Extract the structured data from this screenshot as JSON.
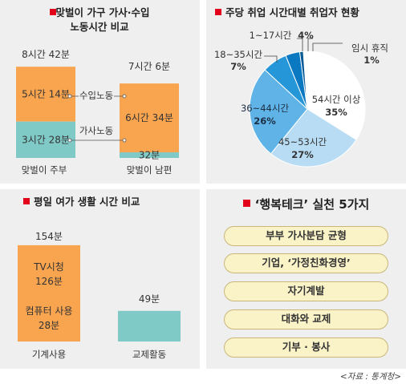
{
  "chart_data": [
    {
      "type": "bar",
      "title_line1": "맞벌이 가구 가사·수입",
      "title_line2": "노동시간 비교",
      "categories": [
        "맞벌이 주부",
        "맞벌이 남편"
      ],
      "series": [
        {
          "name": "수입노동",
          "values": [
            314,
            394
          ],
          "labels": [
            "5시간 14분",
            "6시간 34분"
          ]
        },
        {
          "name": "가사노동",
          "values": [
            208,
            32
          ],
          "labels": [
            "3시간 28분",
            "32분"
          ]
        }
      ],
      "totals": [
        "8시간 42분",
        "7시간 6분"
      ],
      "colors": {
        "income": "#f9a550",
        "housework": "#7fcac7"
      }
    },
    {
      "type": "pie",
      "title": "주당 취업 시간대별 취업자 현황",
      "slices": [
        {
          "label": "54시간 이상",
          "value": 35,
          "display": "35%",
          "color": "#ffffff"
        },
        {
          "label": "45~53시간",
          "value": 27,
          "display": "27%",
          "color": "#b8dcf3"
        },
        {
          "label": "36~44시간",
          "value": 26,
          "display": "26%",
          "color": "#5fb3e6"
        },
        {
          "label": "18~35시간",
          "value": 7,
          "display": "7%",
          "color": "#2596d8"
        },
        {
          "label": "1~17시간",
          "value": 4,
          "display": "4%",
          "color": "#0b78c2"
        },
        {
          "label": "임시 휴직",
          "value": 1,
          "display": "1%",
          "color": "#065a96"
        }
      ]
    },
    {
      "type": "bar",
      "title": "평일 여가 생활 시간 비교",
      "categories": [
        "기계사용",
        "교제활동"
      ],
      "values": [
        154,
        49
      ],
      "totals": [
        "154분",
        "49분"
      ],
      "breakdown": [
        {
          "label": "TV시청",
          "value_label": "126분",
          "value": 126
        },
        {
          "label": "컴퓨터 사용",
          "value_label": "28분",
          "value": 28
        }
      ],
      "colors": {
        "machine": "#f9a550",
        "social": "#7fcac7"
      }
    }
  ],
  "practice": {
    "title": "‘행복테크’ 실천 5가지",
    "items": [
      "부부 가사분담 균형",
      "기업, ‘가정친화경영’",
      "자기계발",
      "대화와 교제",
      "기부 · 봉사"
    ]
  },
  "source": "<자료 : 통계청>"
}
